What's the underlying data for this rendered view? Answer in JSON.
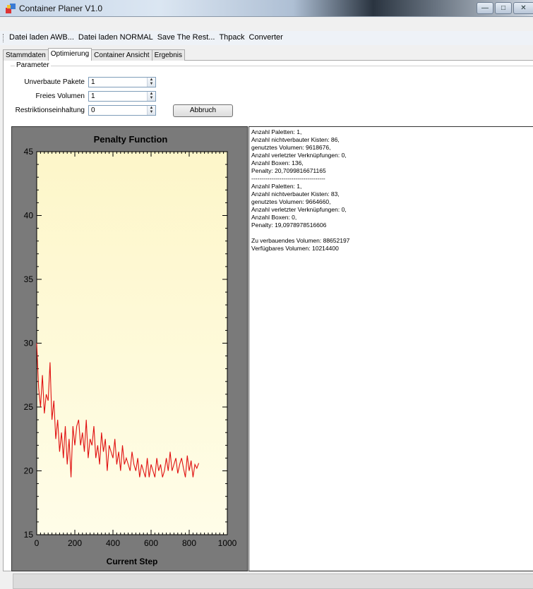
{
  "window": {
    "title": "Container Planer  V1.0"
  },
  "menu": [
    "Datei laden AWB...",
    "Datei laden NORMAL",
    "Save The Rest...",
    "Thpack",
    "Converter"
  ],
  "tabs": [
    "Stammdaten",
    "Optimierung",
    "Container Ansicht",
    "Ergebnis"
  ],
  "active_tab": "Optimierung",
  "params": {
    "legend": "Parameter",
    "fields": [
      {
        "label": "Unverbaute Pakete",
        "value": "1"
      },
      {
        "label": "Freies Volumen",
        "value": "1"
      },
      {
        "label": "Restriktionseinhaltung",
        "value": "0"
      }
    ],
    "button": "Abbruch"
  },
  "chart_data": {
    "type": "line",
    "title": "Penalty Function",
    "xlabel": "Current Step",
    "ylabel": "",
    "xlim": [
      0,
      1000
    ],
    "ylim": [
      15,
      45
    ],
    "xticks": [
      0,
      200,
      400,
      600,
      800,
      1000
    ],
    "yticks": [
      15,
      20,
      25,
      30,
      35,
      40,
      45
    ],
    "series": [
      {
        "color": "#e01010",
        "x": [
          0,
          10,
          20,
          30,
          40,
          50,
          60,
          70,
          75,
          80,
          90,
          100,
          110,
          120,
          130,
          140,
          150,
          160,
          170,
          180,
          190,
          200,
          210,
          220,
          230,
          240,
          250,
          260,
          270,
          280,
          290,
          300,
          310,
          320,
          330,
          340,
          350,
          360,
          370,
          380,
          390,
          400,
          410,
          420,
          430,
          440,
          450,
          460,
          470,
          480,
          490,
          500,
          510,
          520,
          530,
          540,
          550,
          560,
          570,
          580,
          590,
          600,
          610,
          620,
          630,
          640,
          650,
          660,
          670,
          680,
          690,
          700,
          710,
          720,
          730,
          740,
          750,
          760,
          770,
          780,
          790,
          800,
          810,
          820,
          830,
          840,
          850
        ],
        "y": [
          30.0,
          26.5,
          25.0,
          27.5,
          24.5,
          26.0,
          25.5,
          28.5,
          26.0,
          24.0,
          25.5,
          22.5,
          24.0,
          21.5,
          23.0,
          21.0,
          23.5,
          20.5,
          22.5,
          19.5,
          23.5,
          22.0,
          23.5,
          24.0,
          22.0,
          23.0,
          21.5,
          24.0,
          21.0,
          22.5,
          22.0,
          23.5,
          21.0,
          22.0,
          20.5,
          23.0,
          21.5,
          22.5,
          20.0,
          22.0,
          21.5,
          21.0,
          22.5,
          20.5,
          21.5,
          20.0,
          22.0,
          20.5,
          21.0,
          20.5,
          20.0,
          21.5,
          20.5,
          20.0,
          21.0,
          19.5,
          20.5,
          20.0,
          19.5,
          21.0,
          19.5,
          20.5,
          20.0,
          19.5,
          21.0,
          20.0,
          20.5,
          19.5,
          20.0,
          21.0,
          20.0,
          21.5,
          20.0,
          20.5,
          21.0,
          19.8,
          20.5,
          21.0,
          20.2,
          19.5,
          21.2,
          20.0,
          20.8,
          19.5,
          20.5,
          20.2,
          20.6
        ]
      }
    ],
    "grid": false
  },
  "log_lines": [
    "Anzahl Paletten: 1,",
    "Anzahl nichtverbauter Kisten: 86,",
    "genutztes Volumen: 9618676,",
    "Anzahl verletzter Verknüpfungen: 0,",
    "Anzahl Boxen: 136,",
    "Penalty: 20,7099816671165",
    "-------------------------------------",
    "Anzahl Paletten: 1,",
    "Anzahl nichtverbauter Kisten: 83,",
    "genutztes Volumen: 9664660,",
    "Anzahl verletzter Verknüpfungen: 0,",
    "Anzahl Boxen: 0,",
    "Penalty: 19,0978978516606",
    "",
    "Zu verbauendes Volumen: 88652197",
    "Verfügbares Volumen: 10214400"
  ]
}
